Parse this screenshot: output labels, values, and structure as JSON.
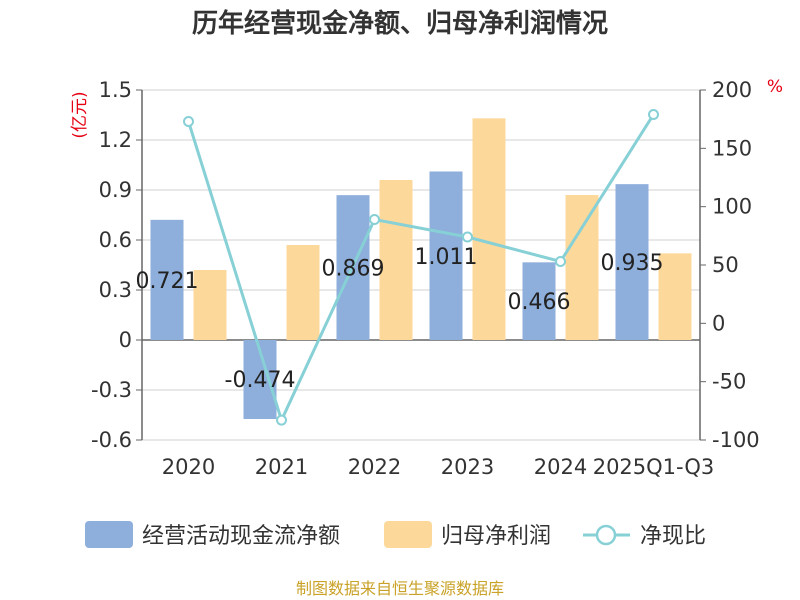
{
  "chart_data": {
    "type": "bar",
    "title": "历年经营现金净额、归母净利润情况",
    "categories": [
      "2020",
      "2021",
      "2022",
      "2023",
      "2024",
      "2025Q1-Q3"
    ],
    "left_axis": {
      "unit": "(亿元)",
      "ylim": [
        -0.6,
        1.5
      ],
      "ticks": [
        "1.5",
        "1.2",
        "0.9",
        "0.6",
        "0.3",
        "0",
        "-0.3",
        "-0.6"
      ]
    },
    "right_axis": {
      "unit": "%",
      "ylim": [
        -100,
        200
      ],
      "ticks": [
        "200",
        "150",
        "100",
        "50",
        "0",
        "-50",
        "-100"
      ]
    },
    "series": [
      {
        "name": "经营活动现金流净额",
        "type": "bar",
        "axis": "left",
        "color": "#8eaedb",
        "values": [
          0.721,
          -0.474,
          0.869,
          1.011,
          0.466,
          0.935
        ],
        "labels": [
          "0.721",
          "-0.474",
          "0.869",
          "1.011",
          "0.466",
          "0.935"
        ]
      },
      {
        "name": "归母净利润",
        "type": "bar",
        "axis": "left",
        "color": "#fdd89b",
        "values": [
          0.42,
          0.57,
          0.96,
          1.33,
          0.87,
          0.52
        ]
      },
      {
        "name": "净现比",
        "type": "line",
        "axis": "right",
        "color": "#86d0d6",
        "values": [
          173,
          -83,
          89,
          74,
          53,
          179
        ]
      }
    ],
    "legend_position": "bottom",
    "source": "制图数据来自恒生聚源数据库"
  }
}
